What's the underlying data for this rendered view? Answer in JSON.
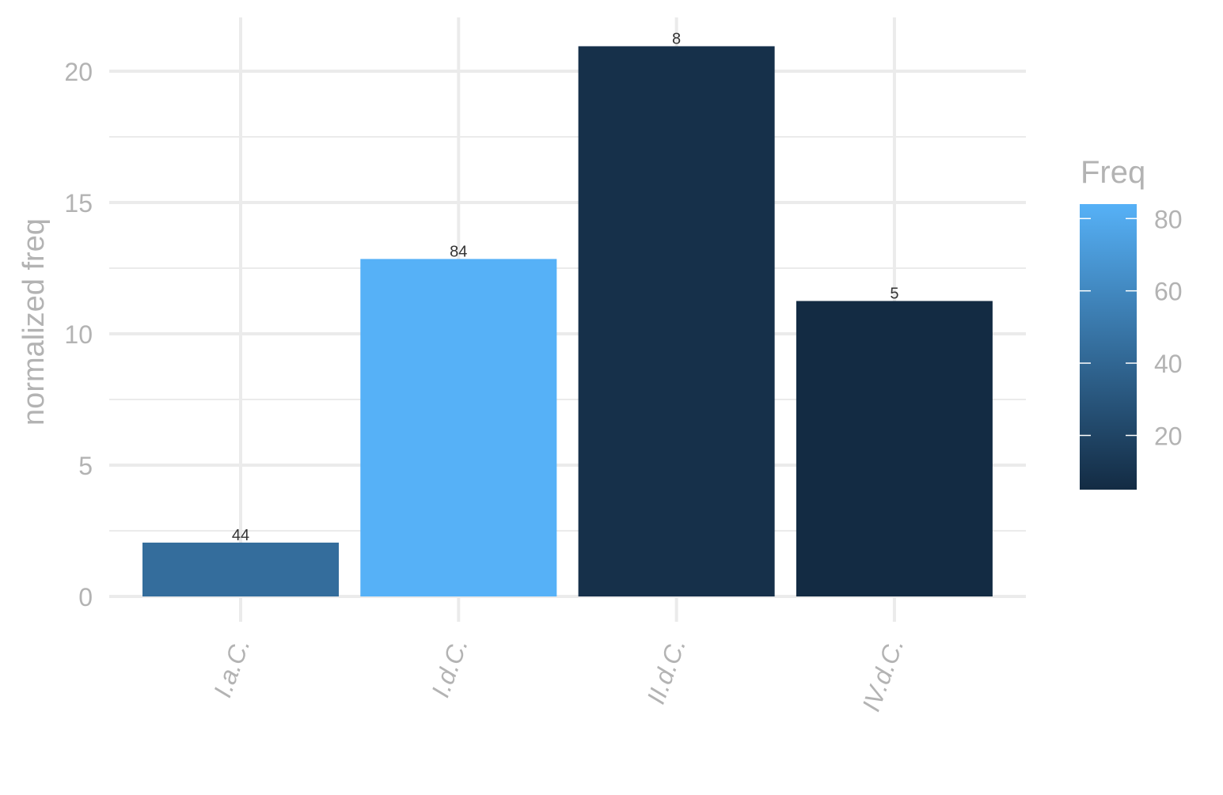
{
  "chart_data": {
    "type": "bar",
    "categories": [
      "I.a.C.",
      "I.d.C.",
      "II.d.C.",
      "IV.d.C."
    ],
    "values": [
      2.05,
      12.85,
      20.95,
      11.25
    ],
    "freq": [
      44,
      84,
      8,
      5
    ],
    "bar_labels": [
      "44",
      "84",
      "8",
      "5"
    ],
    "ylabel": "normalized freq",
    "xlabel": "",
    "ylim": [
      -1.0,
      22.0
    ],
    "y_ticks": [
      0,
      5,
      10,
      15,
      20
    ],
    "y_tick_labels": [
      "0",
      "5",
      "10",
      "15",
      "20"
    ],
    "x_tick_rotation": "rotated ~70 degrees",
    "grid": true,
    "legend": {
      "title": "Freq",
      "type": "continuous colorbar",
      "placement": "right",
      "range": [
        5,
        84
      ],
      "ticks": [
        20,
        40,
        60,
        80
      ],
      "tick_labels": [
        "20",
        "40",
        "60",
        "80"
      ],
      "low_color": "#132B43",
      "high_color": "#56B1F7"
    },
    "colors": {
      "grid": "#ebebeb",
      "axis_text": "#b3b3b3",
      "bar_label": "#333333"
    }
  }
}
